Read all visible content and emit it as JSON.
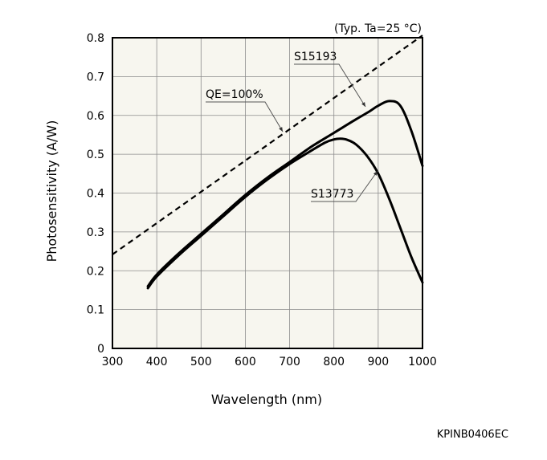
{
  "chart_data": {
    "type": "line",
    "condition": "(Typ. Ta=25 °C)",
    "xlabel": "Wavelength (nm)",
    "ylabel": "Photosensitivity (A/W)",
    "xlim": [
      300,
      1000
    ],
    "ylim": [
      0,
      0.8
    ],
    "x_ticks": [
      "300",
      "400",
      "500",
      "600",
      "700",
      "800",
      "900",
      "1000"
    ],
    "y_ticks": [
      "0",
      "0.1",
      "0.2",
      "0.3",
      "0.4",
      "0.5",
      "0.6",
      "0.7",
      "0.8"
    ],
    "grid": true,
    "background_color": "#f7f6ef",
    "series": [
      {
        "name": "S15193",
        "style": "solid",
        "x": [
          380,
          400,
          450,
          500,
          550,
          600,
          650,
          700,
          750,
          800,
          850,
          880,
          900,
          925,
          950,
          975,
          1000
        ],
        "y": [
          0.16,
          0.19,
          0.245,
          0.295,
          0.345,
          0.395,
          0.44,
          0.48,
          0.52,
          0.555,
          0.59,
          0.61,
          0.625,
          0.637,
          0.625,
          0.56,
          0.47
        ]
      },
      {
        "name": "S13773",
        "style": "solid",
        "x": [
          380,
          400,
          450,
          500,
          550,
          600,
          650,
          700,
          750,
          780,
          800,
          815,
          830,
          850,
          875,
          900,
          925,
          950,
          975,
          1000
        ],
        "y": [
          0.155,
          0.185,
          0.24,
          0.29,
          0.34,
          0.39,
          0.435,
          0.475,
          0.51,
          0.53,
          0.538,
          0.54,
          0.537,
          0.525,
          0.495,
          0.45,
          0.385,
          0.31,
          0.235,
          0.17
        ]
      },
      {
        "name": "QE=100%",
        "style": "dashed",
        "x": [
          300,
          1000
        ],
        "y": [
          0.242,
          0.806
        ]
      }
    ],
    "labels": [
      "S15193",
      "S13773",
      "QE=100%"
    ],
    "figure_code": "KPINB0406EC"
  }
}
